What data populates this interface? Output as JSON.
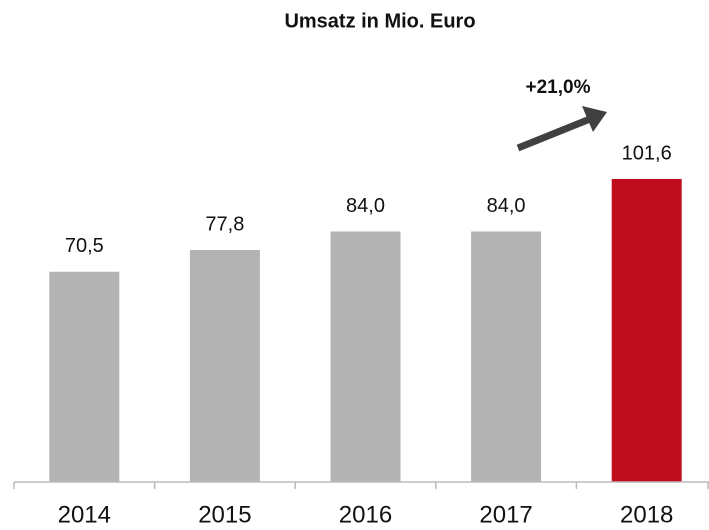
{
  "chart_data": {
    "type": "bar",
    "title": "Umsatz in Mio. Euro",
    "categories": [
      "2014",
      "2015",
      "2016",
      "2017",
      "2018"
    ],
    "values": [
      70.5,
      77.8,
      84.0,
      84.0,
      101.6
    ],
    "value_labels": [
      "70,5",
      "77,8",
      "84,0",
      "84,0",
      "101,6"
    ],
    "colors": [
      "#b3b3b3",
      "#b3b3b3",
      "#b3b3b3",
      "#b3b3b3",
      "#c00d1e"
    ],
    "annotation": "+21,0%"
  }
}
